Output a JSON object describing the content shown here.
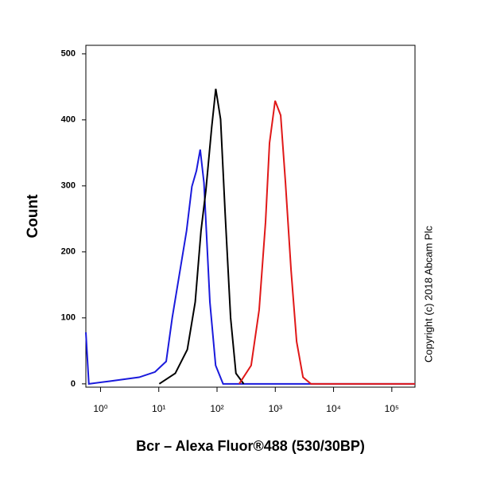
{
  "chart_data": {
    "type": "line",
    "x_label": "Bcr – Alexa Fluor®488 (530/30BP)",
    "y_label": "Count",
    "annotation": "Copyright (c) 2018 Abcam Plc",
    "x_scale": "log",
    "xlim": [
      0.56,
      250000
    ],
    "ylim": [
      -5,
      513
    ],
    "xticks": [
      {
        "value": 1,
        "label": "10⁰"
      },
      {
        "value": 10,
        "label": "10¹"
      },
      {
        "value": 100,
        "label": "10²"
      },
      {
        "value": 1000,
        "label": "10³"
      },
      {
        "value": 10000,
        "label": "10⁴"
      },
      {
        "value": 100000,
        "label": "10⁵"
      }
    ],
    "yticks": [
      0,
      100,
      200,
      300,
      400,
      500
    ],
    "series": [
      {
        "color": "#1a1adc",
        "x": [
          0.56,
          0.63,
          1.44,
          4.6,
          8.6,
          13.4,
          17.0,
          24.4,
          30.0,
          37.0,
          44.3,
          51.4,
          59.6,
          75.4,
          94.6,
          127,
          250000
        ],
        "values": [
          78,
          0,
          4,
          10,
          18,
          34,
          100,
          184,
          232,
          299,
          323,
          355,
          305,
          124,
          28,
          0,
          0
        ]
      },
      {
        "color": "#000000",
        "x": [
          10.2,
          19.2,
          30.9,
          42.2,
          53.1,
          64.3,
          81.0,
          95.1,
          115,
          138,
          171,
          211,
          287
        ],
        "values": [
          0,
          16,
          52,
          124,
          232,
          293,
          389,
          447,
          401,
          257,
          100,
          16,
          0
        ]
      },
      {
        "color": "#e01818",
        "x": [
          240,
          385,
          528,
          680,
          796,
          993,
          1237,
          1495,
          1866,
          2324,
          2992,
          4102,
          250000
        ],
        "values": [
          0,
          28,
          112,
          245,
          365,
          429,
          407,
          305,
          172,
          64,
          10,
          0,
          0
        ]
      }
    ]
  }
}
